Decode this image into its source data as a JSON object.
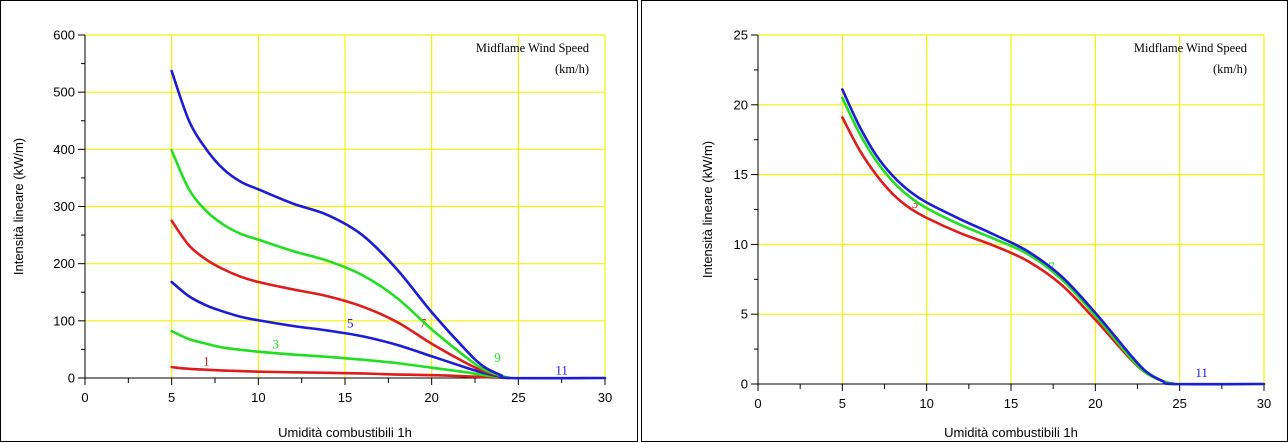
{
  "chart_data": [
    {
      "type": "line",
      "xlabel": "Umidità combustibili 1h",
      "ylabel": "Intensità lineare (kW/m)",
      "annotation_line1": "Midflame Wind Speed",
      "annotation_line2": "(km/h)",
      "xlim": [
        0,
        30
      ],
      "ylim": [
        0,
        600
      ],
      "x_ticks": [
        0,
        5,
        10,
        15,
        20,
        25,
        30
      ],
      "y_ticks": [
        0,
        100,
        200,
        300,
        400,
        500,
        600
      ],
      "grid": true,
      "grid_color": "#f2f20a",
      "series": [
        {
          "name": "1",
          "color": "#dd1c1c",
          "label_at": [
            7,
            22
          ],
          "x": [
            5,
            6,
            8,
            10,
            12,
            14,
            16,
            18,
            20,
            22,
            23.5,
            24.5
          ],
          "y": [
            19,
            16,
            13,
            11,
            10,
            9,
            8,
            6,
            5,
            3,
            1,
            0
          ]
        },
        {
          "name": "3",
          "color": "#22dd22",
          "label_at": [
            11,
            52
          ],
          "x": [
            5,
            6,
            7,
            8,
            10,
            12,
            14,
            16,
            18,
            20,
            22,
            23,
            24,
            24.5
          ],
          "y": [
            82,
            68,
            60,
            53,
            46,
            41,
            37,
            32,
            26,
            18,
            10,
            5,
            1,
            0
          ]
        },
        {
          "name": "5",
          "color": "#1c1cd2",
          "label_at": [
            15.3,
            88
          ],
          "x": [
            5,
            6,
            7,
            8,
            9,
            10,
            12,
            14,
            16,
            18,
            20,
            22,
            23,
            24,
            24.5
          ],
          "y": [
            168,
            143,
            127,
            116,
            107,
            101,
            91,
            83,
            73,
            58,
            38,
            18,
            9,
            2,
            0
          ]
        },
        {
          "name": "7",
          "color": "#dd1c1c",
          "label_at": [
            19.5,
            88
          ],
          "x": [
            5,
            6,
            7,
            8,
            9,
            10,
            12,
            14,
            16,
            18,
            20,
            22,
            23,
            24,
            24.5
          ],
          "y": [
            275,
            232,
            207,
            190,
            177,
            168,
            155,
            143,
            125,
            98,
            60,
            26,
            12,
            3,
            0
          ]
        },
        {
          "name": "9",
          "color": "#22dd22",
          "label_at": [
            23.8,
            28
          ],
          "x": [
            5,
            6,
            7,
            8,
            9,
            10,
            12,
            14,
            16,
            18,
            20,
            22,
            23,
            24,
            24.5
          ],
          "y": [
            398,
            330,
            292,
            268,
            252,
            242,
            222,
            205,
            180,
            140,
            85,
            36,
            15,
            4,
            0
          ]
        },
        {
          "name": "11",
          "color": "#1c1cd2",
          "label_at": [
            27.5,
            6
          ],
          "x": [
            5,
            6,
            7,
            8,
            9,
            10,
            12,
            14,
            16,
            18,
            20,
            22,
            23,
            24,
            24.5,
            30
          ],
          "y": [
            537,
            450,
            400,
            365,
            343,
            330,
            305,
            285,
            250,
            190,
            115,
            48,
            20,
            5,
            0,
            0
          ]
        }
      ]
    },
    {
      "type": "line",
      "xlabel": "Umidità combustibili 1h",
      "ylabel": "Intensità lineare (kW/m)",
      "annotation_line1": "Midflame Wind Speed",
      "annotation_line2": "(km/h)",
      "xlim": [
        0,
        30
      ],
      "ylim": [
        0,
        25
      ],
      "x_ticks": [
        0,
        5,
        10,
        15,
        20,
        25,
        30
      ],
      "y_ticks": [
        0,
        5,
        10,
        15,
        20,
        25
      ],
      "grid": true,
      "grid_color": "#f2f20a",
      "series": [
        {
          "name": "3",
          "color": "#dd1c1c",
          "label_at": [
            9.3,
            12.6
          ],
          "x": [
            5,
            6,
            7,
            8,
            9,
            10,
            12,
            14,
            16,
            18,
            20,
            22,
            23,
            24,
            24.7
          ],
          "y": [
            19.1,
            16.8,
            15.0,
            13.6,
            12.6,
            11.9,
            10.8,
            9.9,
            8.8,
            7.1,
            4.6,
            1.9,
            0.8,
            0.2,
            0
          ]
        },
        {
          "name": "7",
          "color": "#22dd22",
          "label_at": [
            17.4,
            8.1
          ],
          "x": [
            5,
            6,
            7,
            8,
            9,
            10,
            12,
            14,
            16,
            18,
            20,
            22,
            23,
            24,
            24.7
          ],
          "y": [
            20.5,
            18.0,
            16.0,
            14.5,
            13.4,
            12.6,
            11.4,
            10.4,
            9.3,
            7.5,
            4.9,
            2.0,
            0.8,
            0.2,
            0
          ]
        },
        {
          "name": "11",
          "color": "#1c1cd2",
          "label_at": [
            26.3,
            0.5
          ],
          "x": [
            5,
            6,
            7,
            8,
            9,
            10,
            12,
            14,
            16,
            18,
            20,
            22,
            23,
            24,
            24.7,
            30
          ],
          "y": [
            21.1,
            18.5,
            16.4,
            14.9,
            13.8,
            13.0,
            11.8,
            10.7,
            9.5,
            7.7,
            5.1,
            2.2,
            0.9,
            0.2,
            0,
            0
          ]
        }
      ]
    }
  ]
}
